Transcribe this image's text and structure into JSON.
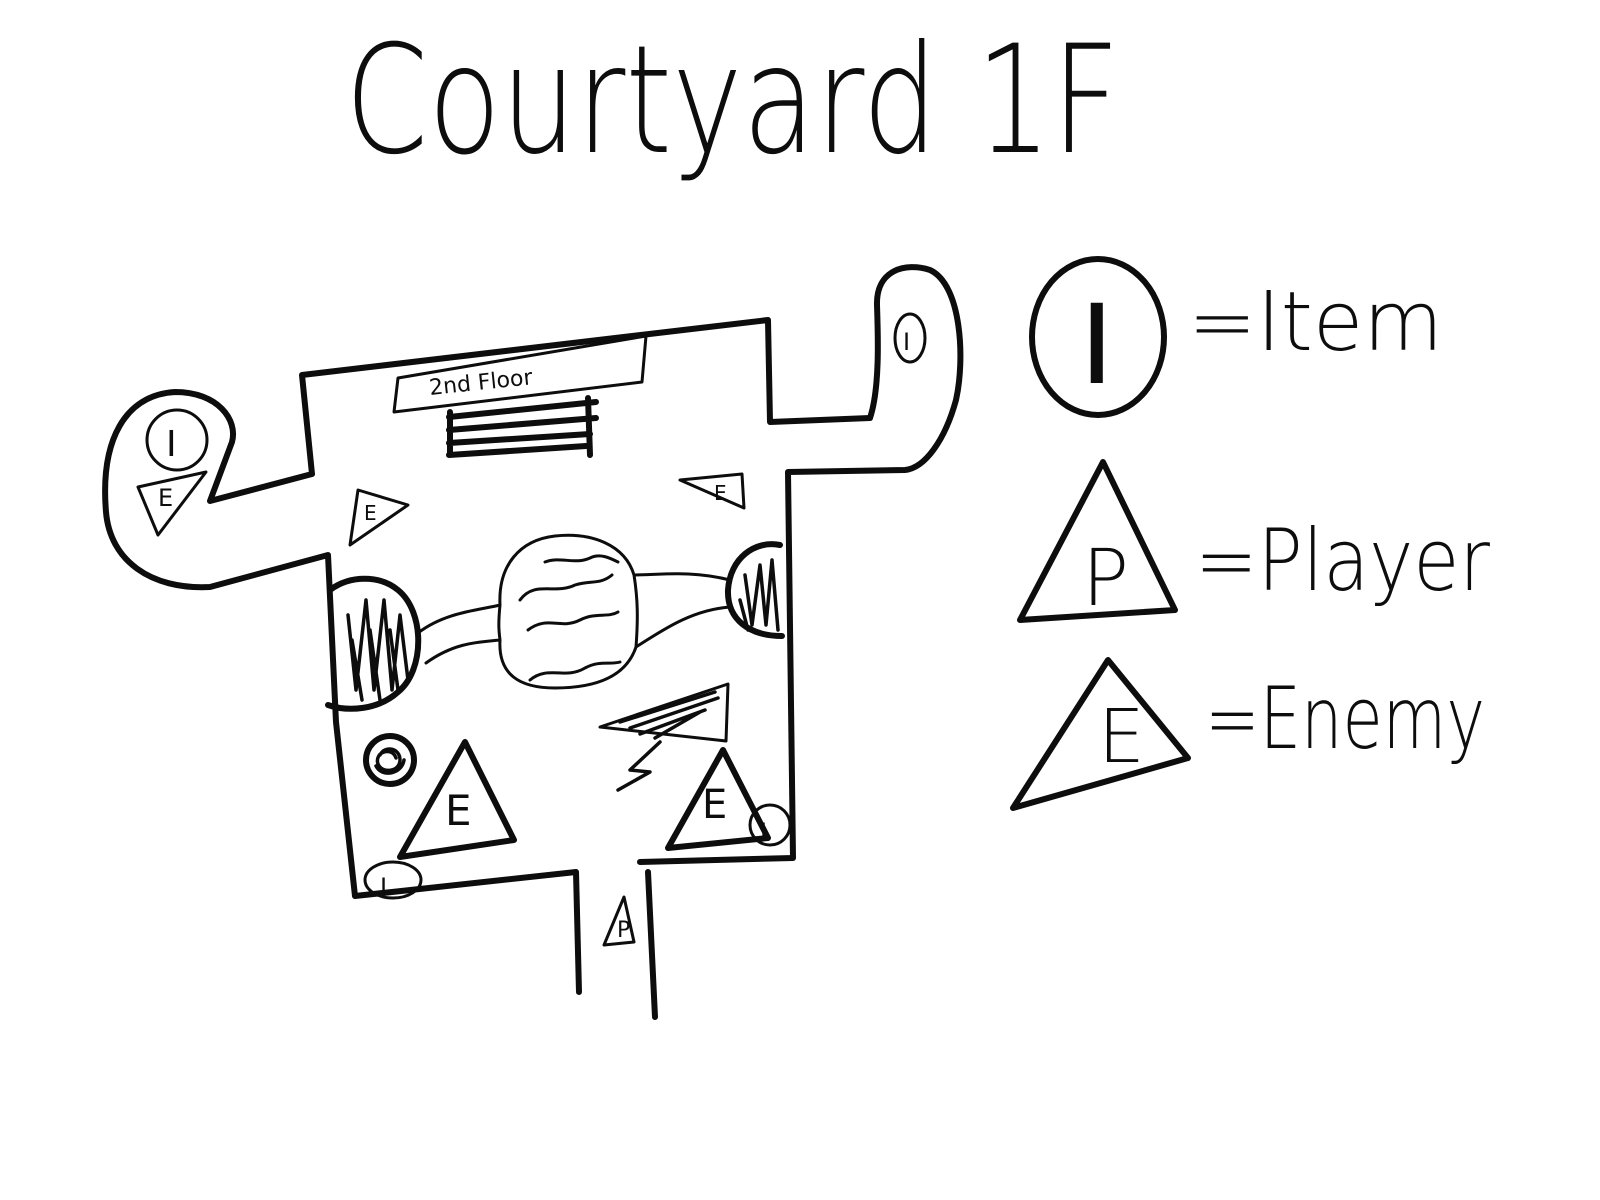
{
  "title": "Courtyard 1F",
  "map": {
    "upper_floor_label": "2nd Floor",
    "item_marker_letter": "I",
    "player_marker_letter": "P",
    "enemy_marker_letter": "E"
  },
  "legend": {
    "item_symbol": "I",
    "item_label": "=Item",
    "player_symbol": "P",
    "player_label": "=Player",
    "enemy_symbol": "E",
    "enemy_label": "=Enemy"
  }
}
